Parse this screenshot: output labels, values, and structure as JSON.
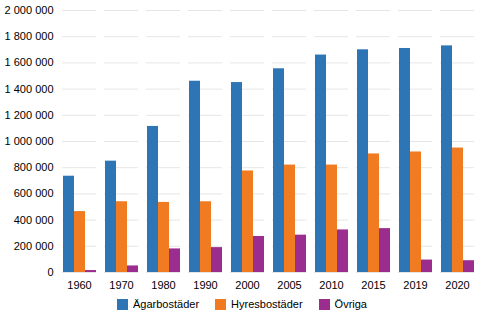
{
  "chart_data": {
    "type": "bar",
    "categories": [
      "1960",
      "1970",
      "1980",
      "1990",
      "2000",
      "2005",
      "2010",
      "2015",
      "2019",
      "2020"
    ],
    "series": [
      {
        "name": "Ägarbostäder",
        "color": "#2E75B6",
        "values": [
          735000,
          850000,
          1115000,
          1460000,
          1450000,
          1555000,
          1660000,
          1700000,
          1710000,
          1730000
        ]
      },
      {
        "name": "Hyresbostäder",
        "color": "#F07B20",
        "values": [
          465000,
          540000,
          535000,
          540000,
          775000,
          820000,
          820000,
          905000,
          920000,
          950000
        ]
      },
      {
        "name": "Övriga",
        "color": "#9B2D8E",
        "values": [
          15000,
          50000,
          180000,
          190000,
          275000,
          285000,
          325000,
          335000,
          95000,
          90000
        ]
      }
    ],
    "ylim": [
      0,
      2000000
    ],
    "yticks": [
      0,
      {
        "value": 200000,
        "label": "200 000"
      },
      {
        "value": 400000,
        "label": "400 000"
      },
      {
        "value": 600000,
        "label": "600 000"
      },
      {
        "value": 800000,
        "label": "800 000"
      },
      {
        "value": 1000000,
        "label": "1 000 000"
      },
      {
        "value": 1200000,
        "label": "1 200 000"
      },
      {
        "value": 1400000,
        "label": "1 400 000"
      },
      {
        "value": 1600000,
        "label": "1 600 000"
      },
      {
        "value": 1800000,
        "label": "1 800 000"
      },
      {
        "value": 2000000,
        "label": "2 000 000"
      }
    ],
    "grid": true,
    "legend": "bottom"
  }
}
